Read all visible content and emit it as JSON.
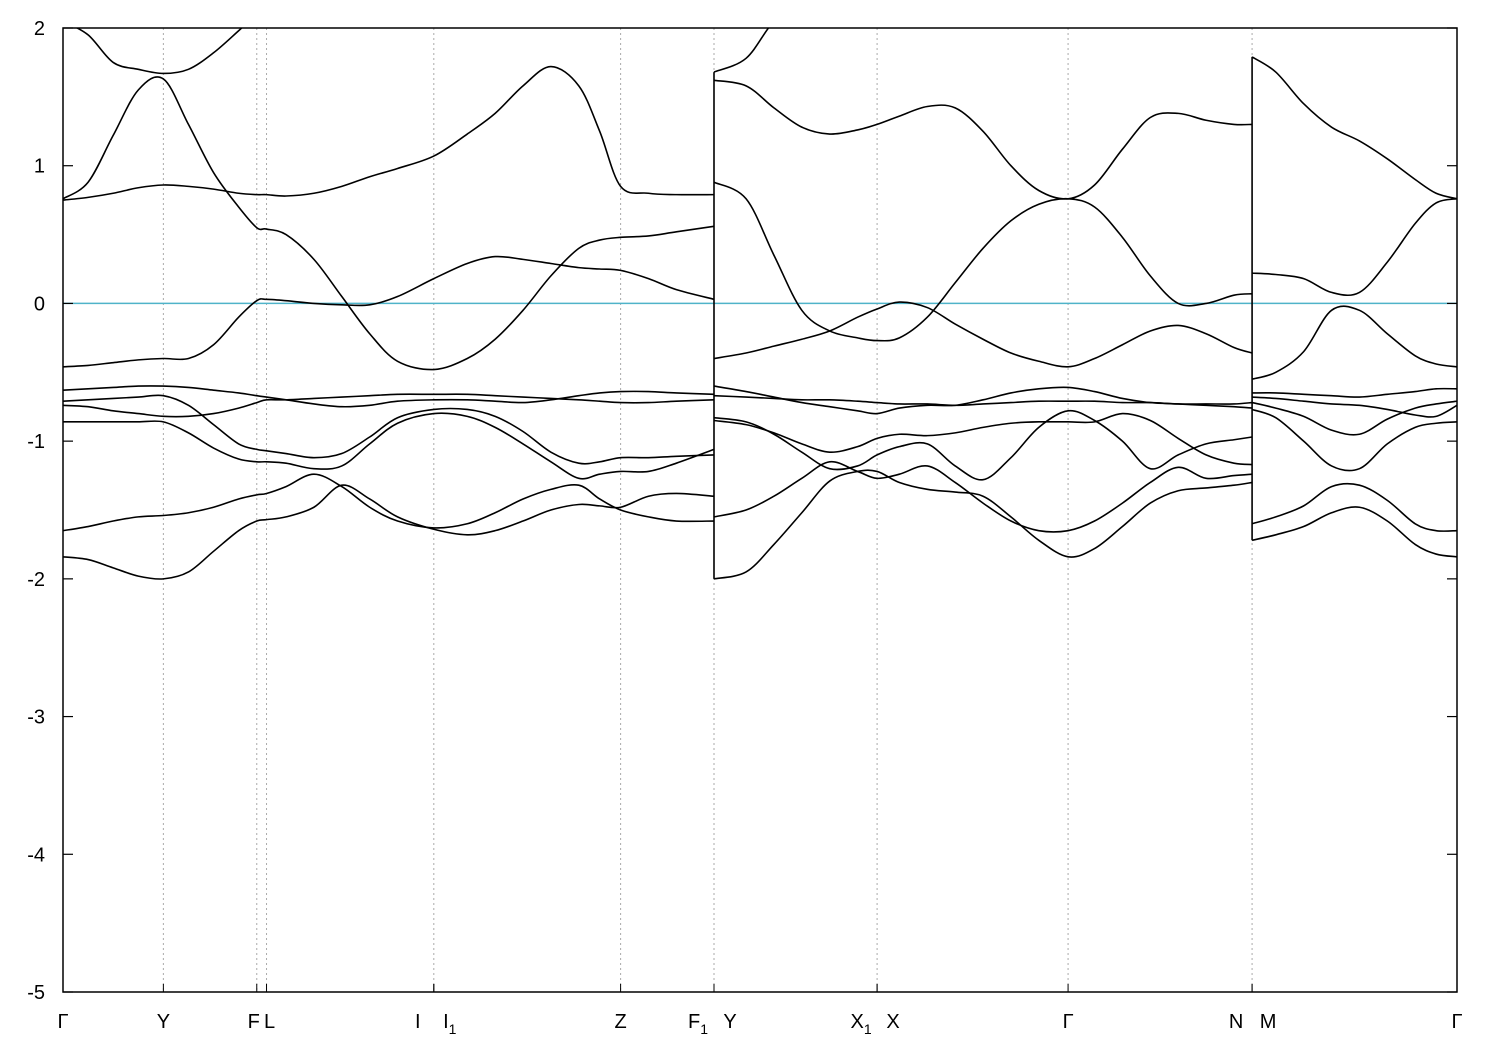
{
  "chart_data": {
    "type": "line",
    "title": "",
    "xlabel": "",
    "ylabel": "",
    "ylim": [
      -5,
      2
    ],
    "yticks": [
      2,
      1,
      0,
      -1,
      -2,
      -3,
      -4,
      -5
    ],
    "ytick_labels": [
      "2",
      "1",
      "0",
      "-1",
      "-2",
      "-3",
      "-4",
      "-5"
    ],
    "xlim": [
      0,
      1
    ],
    "kpoints": [
      {
        "x": 0.0,
        "label": "Γ",
        "sub": ""
      },
      {
        "x": 0.072,
        "label": "Y",
        "sub": ""
      },
      {
        "x": 0.139,
        "label": "F",
        "sub": ""
      },
      {
        "x": 0.146,
        "label": "L",
        "sub": ""
      },
      {
        "x": 0.266,
        "label": "I",
        "sub": ""
      },
      {
        "x": 0.266,
        "label": "I",
        "sub": "1"
      },
      {
        "x": 0.4,
        "label": "Z",
        "sub": ""
      },
      {
        "x": 0.467,
        "label": "F",
        "sub": "1"
      },
      {
        "x": 0.467,
        "label": "Y",
        "sub": ""
      },
      {
        "x": 0.584,
        "label": "X",
        "sub": "1"
      },
      {
        "x": 0.584,
        "label": "X",
        "sub": ""
      },
      {
        "x": 0.721,
        "label": "Γ",
        "sub": ""
      },
      {
        "x": 0.853,
        "label": "N",
        "sub": ""
      },
      {
        "x": 0.853,
        "label": "M",
        "sub": ""
      },
      {
        "x": 1.0,
        "label": "Γ",
        "sub": ""
      }
    ],
    "fermi_level": 0,
    "fermi_color": "#4fb3c9",
    "band_color": "#000000",
    "grid": "vertical dotted at high-symmetry points",
    "segments": [
      {
        "x": [
          0,
          0.018,
          0.036,
          0.054,
          0.072,
          0.09,
          0.108,
          0.126,
          0.139,
          0.146,
          0.16,
          0.18,
          0.2,
          0.22,
          0.24,
          0.266,
          0.29,
          0.31,
          0.33,
          0.35,
          0.37,
          0.385,
          0.4,
          0.42,
          0.44,
          0.467
        ],
        "bands": [
          [
            -1.84,
            -1.86,
            -1.92,
            -1.98,
            -2.0,
            -1.95,
            -1.8,
            -1.65,
            -1.58,
            -1.57,
            -1.55,
            -1.48,
            -1.32,
            -1.42,
            -1.55,
            -1.64,
            -1.68,
            -1.65,
            -1.58,
            -1.5,
            -1.46,
            -1.47,
            -1.48,
            -1.4,
            -1.38,
            -1.4
          ],
          [
            -1.65,
            -1.62,
            -1.58,
            -1.55,
            -1.54,
            -1.52,
            -1.48,
            -1.42,
            -1.39,
            -1.38,
            -1.33,
            -1.24,
            -1.33,
            -1.48,
            -1.58,
            -1.63,
            -1.6,
            -1.52,
            -1.42,
            -1.35,
            -1.32,
            -1.42,
            -1.5,
            -1.55,
            -1.58,
            -1.58
          ],
          [
            -0.86,
            -0.86,
            -0.86,
            -0.86,
            -0.86,
            -0.94,
            -1.05,
            -1.13,
            -1.15,
            -1.15,
            -1.16,
            -1.2,
            -1.18,
            -1.02,
            -0.87,
            -0.8,
            -0.82,
            -0.9,
            -1.02,
            -1.15,
            -1.27,
            -1.24,
            -1.22,
            -1.22,
            -1.16,
            -1.06
          ],
          [
            -0.71,
            -0.7,
            -0.69,
            -0.68,
            -0.67,
            -0.74,
            -0.88,
            -1.02,
            -1.06,
            -1.07,
            -1.09,
            -1.12,
            -1.09,
            -0.97,
            -0.83,
            -0.77,
            -0.77,
            -0.82,
            -0.93,
            -1.08,
            -1.16,
            -1.15,
            -1.12,
            -1.12,
            -1.11,
            -1.1
          ],
          [
            -0.63,
            -0.62,
            -0.61,
            -0.6,
            -0.6,
            -0.61,
            -0.63,
            -0.65,
            -0.67,
            -0.68,
            -0.7,
            -0.73,
            -0.75,
            -0.74,
            -0.71,
            -0.7,
            -0.7,
            -0.71,
            -0.72,
            -0.7,
            -0.67,
            -0.65,
            -0.64,
            -0.64,
            -0.65,
            -0.66
          ],
          [
            -0.74,
            -0.75,
            -0.78,
            -0.8,
            -0.82,
            -0.82,
            -0.8,
            -0.76,
            -0.72,
            -0.7,
            -0.7,
            -0.69,
            -0.68,
            -0.67,
            -0.66,
            -0.66,
            -0.66,
            -0.67,
            -0.68,
            -0.69,
            -0.7,
            -0.71,
            -0.72,
            -0.72,
            -0.71,
            -0.7
          ],
          [
            -0.46,
            -0.45,
            -0.43,
            -0.41,
            -0.4,
            -0.4,
            -0.3,
            -0.1,
            0.02,
            0.03,
            0.02,
            0.0,
            -0.01,
            -0.01,
            0.05,
            0.18,
            0.29,
            0.34,
            0.32,
            0.29,
            0.26,
            0.25,
            0.24,
            0.18,
            0.1,
            0.03
          ],
          [
            0.75,
            0.77,
            0.8,
            0.84,
            0.86,
            0.85,
            0.83,
            0.8,
            0.79,
            0.79,
            0.78,
            0.8,
            0.85,
            0.92,
            0.98,
            1.07,
            1.23,
            1.38,
            1.58,
            1.72,
            1.58,
            1.25,
            0.85,
            0.8,
            0.79,
            0.79
          ],
          [
            0.76,
            0.88,
            1.22,
            1.55,
            1.63,
            1.3,
            0.95,
            0.7,
            0.55,
            0.54,
            0.5,
            0.32,
            0.05,
            -0.22,
            -0.42,
            -0.48,
            -0.4,
            -0.26,
            -0.05,
            0.2,
            0.4,
            0.46,
            0.48,
            0.49,
            0.52,
            0.56
          ],
          [
            2.05,
            1.95,
            1.75,
            1.7,
            1.67,
            1.7,
            1.82,
            1.98,
            2.1,
            2.12,
            2.15,
            2.2,
            2.2,
            2.2,
            2.2,
            2.2,
            2.2,
            2.2,
            2.2,
            2.2,
            2.2,
            2.2,
            2.2,
            2.2,
            2.2,
            2.2
          ]
        ]
      },
      {
        "x": [
          0.467,
          0.49,
          0.51,
          0.53,
          0.55,
          0.57,
          0.584,
          0.6,
          0.62,
          0.64,
          0.66,
          0.68,
          0.7,
          0.721,
          0.74,
          0.76,
          0.78,
          0.8,
          0.82,
          0.84,
          0.853
        ],
        "bands": [
          [
            -2.0,
            -1.95,
            -1.75,
            -1.52,
            -1.29,
            -1.22,
            -1.22,
            -1.3,
            -1.35,
            -1.37,
            -1.4,
            -1.55,
            -1.72,
            -1.84,
            -1.78,
            -1.62,
            -1.45,
            -1.36,
            -1.34,
            -1.32,
            -1.3
          ],
          [
            -1.55,
            -1.5,
            -1.4,
            -1.27,
            -1.15,
            -1.22,
            -1.27,
            -1.24,
            -1.18,
            -1.3,
            -1.45,
            -1.58,
            -1.65,
            -1.65,
            -1.58,
            -1.45,
            -1.3,
            -1.19,
            -1.27,
            -1.25,
            -1.24
          ],
          [
            -0.83,
            -0.86,
            -0.95,
            -1.08,
            -1.2,
            -1.18,
            -1.1,
            -1.04,
            -1.02,
            -1.18,
            -1.28,
            -1.12,
            -0.9,
            -0.78,
            -0.85,
            -1.0,
            -1.2,
            -1.1,
            -1.02,
            -0.99,
            -0.97
          ],
          [
            -0.85,
            -0.88,
            -0.94,
            -1.02,
            -1.08,
            -1.04,
            -0.98,
            -0.95,
            -0.96,
            -0.94,
            -0.9,
            -0.87,
            -0.86,
            -0.86,
            -0.86,
            -0.8,
            -0.85,
            -0.98,
            -1.1,
            -1.16,
            -1.17
          ],
          [
            -0.6,
            -0.64,
            -0.68,
            -0.72,
            -0.75,
            -0.78,
            -0.8,
            -0.76,
            -0.74,
            -0.74,
            -0.7,
            -0.65,
            -0.62,
            -0.61,
            -0.64,
            -0.69,
            -0.72,
            -0.73,
            -0.74,
            -0.75,
            -0.76
          ],
          [
            -0.67,
            -0.68,
            -0.69,
            -0.7,
            -0.7,
            -0.71,
            -0.72,
            -0.73,
            -0.73,
            -0.74,
            -0.73,
            -0.72,
            -0.71,
            -0.71,
            -0.71,
            -0.72,
            -0.72,
            -0.73,
            -0.73,
            -0.73,
            -0.72
          ],
          [
            -0.4,
            -0.36,
            -0.31,
            -0.26,
            -0.2,
            -0.1,
            -0.04,
            0.01,
            -0.03,
            -0.15,
            -0.26,
            -0.36,
            -0.42,
            -0.46,
            -0.4,
            -0.3,
            -0.2,
            -0.16,
            -0.22,
            -0.32,
            -0.36
          ],
          [
            0.88,
            0.76,
            0.35,
            -0.05,
            -0.2,
            -0.25,
            -0.27,
            -0.25,
            -0.1,
            0.15,
            0.4,
            0.6,
            0.72,
            0.76,
            0.7,
            0.48,
            0.2,
            0.0,
            0.0,
            0.06,
            0.07
          ],
          [
            1.62,
            1.58,
            1.42,
            1.28,
            1.23,
            1.26,
            1.3,
            1.36,
            1.43,
            1.42,
            1.25,
            1.0,
            0.82,
            0.76,
            0.86,
            1.12,
            1.35,
            1.38,
            1.33,
            1.3,
            1.3
          ],
          [
            1.68,
            1.78,
            2.05,
            2.2,
            2.2,
            2.2,
            2.2,
            2.2,
            2.2,
            2.2,
            2.2,
            2.2,
            2.2,
            2.2,
            2.2,
            2.2,
            2.2,
            2.2,
            2.2,
            2.2,
            2.2
          ]
        ]
      },
      {
        "x": [
          0.853,
          0.87,
          0.89,
          0.91,
          0.93,
          0.95,
          0.97,
          0.985,
          1.0
        ],
        "bands": [
          [
            -1.72,
            -1.68,
            -1.62,
            -1.52,
            -1.48,
            -1.58,
            -1.75,
            -1.82,
            -1.84
          ],
          [
            -1.6,
            -1.55,
            -1.47,
            -1.33,
            -1.32,
            -1.43,
            -1.6,
            -1.65,
            -1.65
          ],
          [
            -0.77,
            -0.83,
            -1.0,
            -1.18,
            -1.2,
            -1.02,
            -0.9,
            -0.87,
            -0.86
          ],
          [
            -0.72,
            -0.76,
            -0.82,
            -0.92,
            -0.95,
            -0.84,
            -0.76,
            -0.73,
            -0.71
          ],
          [
            -0.68,
            -0.69,
            -0.71,
            -0.73,
            -0.74,
            -0.77,
            -0.81,
            -0.82,
            -0.74
          ],
          [
            -0.65,
            -0.65,
            -0.66,
            -0.67,
            -0.68,
            -0.66,
            -0.64,
            -0.62,
            -0.62
          ],
          [
            -0.55,
            -0.5,
            -0.35,
            -0.05,
            -0.05,
            -0.22,
            -0.38,
            -0.44,
            -0.46
          ],
          [
            0.22,
            0.21,
            0.18,
            0.08,
            0.08,
            0.3,
            0.58,
            0.73,
            0.76
          ],
          [
            1.79,
            1.68,
            1.45,
            1.28,
            1.18,
            1.05,
            0.9,
            0.8,
            0.76
          ]
        ]
      }
    ]
  }
}
